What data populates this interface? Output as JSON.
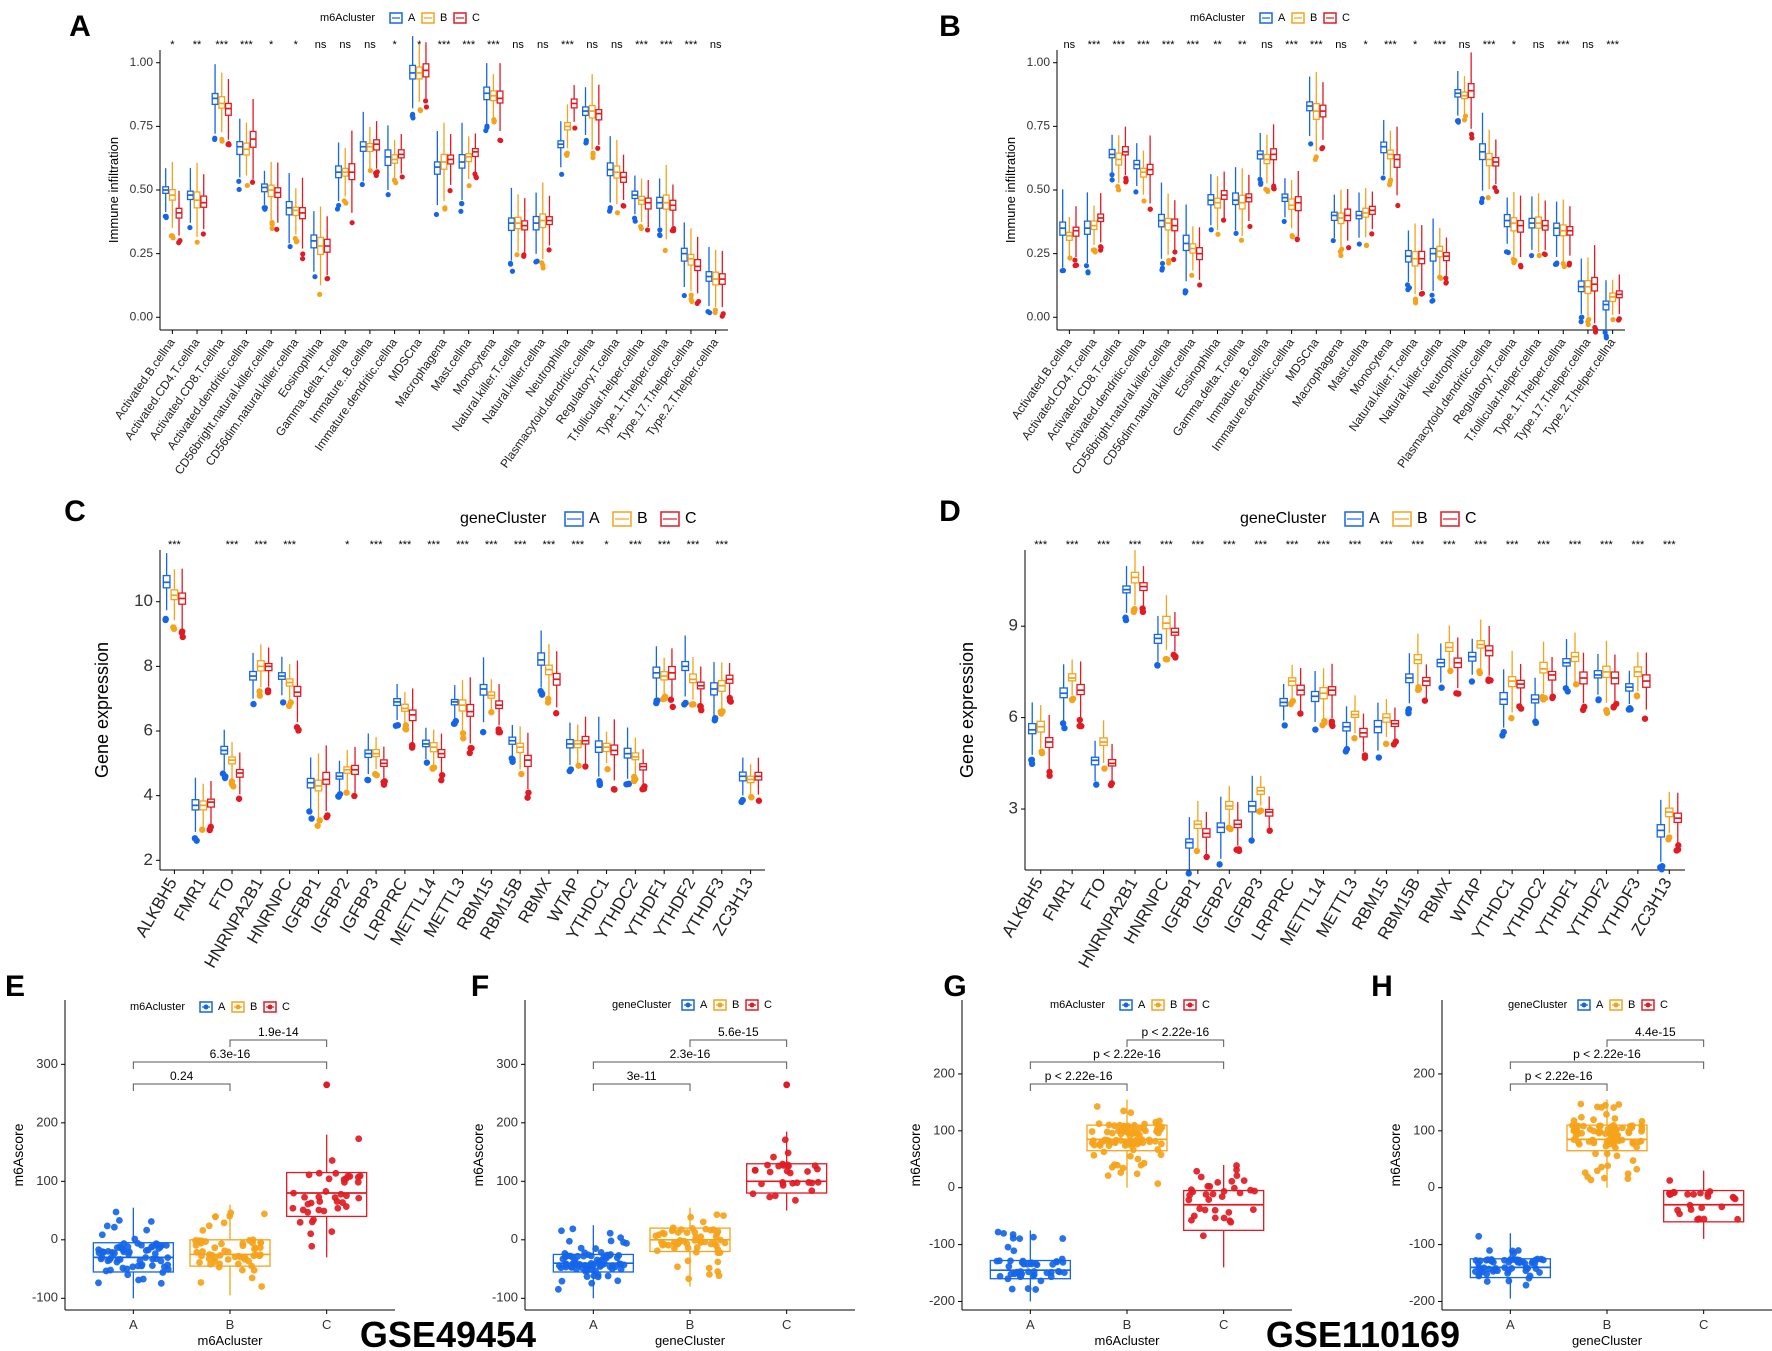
{
  "figure": {
    "dataset_left": "GSE49454",
    "dataset_right": "GSE110169"
  },
  "cluster_colors": {
    "A": "#1565e8",
    "B": "#f5a31a",
    "C": "#e01b24"
  },
  "chart_data": [
    {
      "panel": "A",
      "type": "box",
      "legend_title": "m6Acluster",
      "legend_keys": [
        "A",
        "B",
        "C"
      ],
      "ylabel": "Immune infiltration",
      "xlabel": "",
      "ylim": [
        -0.05,
        1.05
      ],
      "yticks": [
        "0.00",
        "0.25",
        "0.50",
        "0.75",
        "1.00"
      ],
      "yticks_values": [
        0,
        0.25,
        0.5,
        0.75,
        1.0
      ],
      "categories": [
        "Activated.B.cellna",
        "Activated.CD4.T.cellna",
        "Activated.CD8.T.cellna",
        "Activated.dendritic.cellna",
        "CD56bright.natural.killer.cellna",
        "CD56dim.natural.killer.cellna",
        "Eosinophilna",
        "Gamma.delta.T.cellna",
        "Immature..B.cellna",
        "Immature.dendritic.cellna",
        "MDSCna",
        "Macrophagena",
        "Mast.cellna",
        "Monocytena",
        "Natural.killer.T.cellna",
        "Natural.killer.cellna",
        "Neutrophilna",
        "Plasmacytoid.dendritic.cellna",
        "Regulatory.T.cellna",
        "T.follicular.helper.cellna",
        "Type.1.T.helper.cellna",
        "Type.17.T.helper.cellna",
        "Type.2.T.helper.cellna"
      ],
      "significance": [
        "*",
        "**",
        "***",
        "***",
        "*",
        "*",
        "ns",
        "ns",
        "ns",
        "*",
        "*",
        "***",
        "***",
        "***",
        "ns",
        "ns",
        "***",
        "ns",
        "ns",
        "***",
        "***",
        "***",
        "ns"
      ],
      "medians": {
        "A": [
          0.5,
          0.48,
          0.86,
          0.67,
          0.51,
          0.43,
          0.3,
          0.57,
          0.67,
          0.63,
          0.96,
          0.59,
          0.61,
          0.88,
          0.37,
          0.37,
          0.68,
          0.81,
          0.58,
          0.48,
          0.45,
          0.25,
          0.16
        ],
        "B": [
          0.48,
          0.46,
          0.84,
          0.66,
          0.5,
          0.42,
          0.28,
          0.57,
          0.67,
          0.62,
          0.96,
          0.61,
          0.63,
          0.87,
          0.37,
          0.38,
          0.75,
          0.81,
          0.57,
          0.46,
          0.45,
          0.23,
          0.15
        ],
        "C": [
          0.41,
          0.45,
          0.82,
          0.7,
          0.49,
          0.41,
          0.28,
          0.57,
          0.68,
          0.64,
          0.97,
          0.62,
          0.65,
          0.86,
          0.36,
          0.38,
          0.84,
          0.8,
          0.55,
          0.45,
          0.44,
          0.2,
          0.15
        ]
      }
    },
    {
      "panel": "B",
      "type": "box",
      "legend_title": "m6Acluster",
      "legend_keys": [
        "A",
        "B",
        "C"
      ],
      "ylabel": "Immune infiltration",
      "xlabel": "",
      "ylim": [
        -0.05,
        1.05
      ],
      "yticks": [
        "0.00",
        "0.25",
        "0.50",
        "0.75",
        "1.00"
      ],
      "yticks_values": [
        0,
        0.25,
        0.5,
        0.75,
        1.0
      ],
      "categories": [
        "Activated.B.cellna",
        "Activated.CD4.T.cellna",
        "Activated.CD8.T.cellna",
        "Activated.dendritic.cellna",
        "CD56bright.natural.killer.cellna",
        "CD56dim.natural.killer.cellna",
        "Eosinophilna",
        "Gamma.delta.T.cellna",
        "Immature..B.cellna",
        "Immature.dendritic.cellna",
        "MDSCna",
        "Macrophagena",
        "Mast.cellna",
        "Monocytena",
        "Natural.killer.T.cellna",
        "Natural.killer.cellna",
        "Neutrophilna",
        "Plasmacytoid.dendritic.cellna",
        "Regulatory.T.cellna",
        "T.follicular.helper.cellna",
        "Type.1.T.helper.cellna",
        "Type.17.T.helper.cellna",
        "Type.2.T.helper.cellna"
      ],
      "significance": [
        "ns",
        "***",
        "***",
        "***",
        "***",
        "***",
        "**",
        "**",
        "ns",
        "***",
        "***",
        "ns",
        "*",
        "***",
        "*",
        "***",
        "ns",
        "***",
        "*",
        "ns",
        "***",
        "ns",
        "***"
      ],
      "medians": {
        "A": [
          0.35,
          0.35,
          0.64,
          0.6,
          0.38,
          0.29,
          0.46,
          0.46,
          0.64,
          0.47,
          0.83,
          0.4,
          0.4,
          0.67,
          0.24,
          0.25,
          0.88,
          0.65,
          0.38,
          0.37,
          0.35,
          0.12,
          0.05
        ],
        "B": [
          0.32,
          0.36,
          0.62,
          0.57,
          0.37,
          0.27,
          0.45,
          0.45,
          0.62,
          0.44,
          0.81,
          0.39,
          0.41,
          0.64,
          0.23,
          0.26,
          0.87,
          0.62,
          0.37,
          0.37,
          0.34,
          0.12,
          0.08
        ],
        "C": [
          0.34,
          0.39,
          0.65,
          0.58,
          0.36,
          0.25,
          0.48,
          0.47,
          0.64,
          0.45,
          0.81,
          0.4,
          0.42,
          0.62,
          0.23,
          0.24,
          0.89,
          0.61,
          0.36,
          0.36,
          0.34,
          0.13,
          0.09
        ]
      }
    },
    {
      "panel": "C",
      "type": "box",
      "legend_title": "geneCluster",
      "legend_keys": [
        "A",
        "B",
        "C"
      ],
      "ylabel": "Gene expression",
      "xlabel": "",
      "ylim": [
        1.7,
        11.6
      ],
      "yticks": [
        "2",
        "4",
        "6",
        "8",
        "10"
      ],
      "yticks_values": [
        2,
        4,
        6,
        8,
        10
      ],
      "categories": [
        "ALKBH5",
        "FMR1",
        "FTO",
        "HNRNPA2B1",
        "HNRNPC",
        "IGFBP1",
        "IGFBP2",
        "IGFBP3",
        "LRPPRC",
        "METTL14",
        "METTL3",
        "RBM15",
        "RBM15B",
        "RBMX",
        "WTAP",
        "YTHDC1",
        "YTHDC2",
        "YTHDF1",
        "YTHDF2",
        "YTHDF3",
        "ZC3H13"
      ],
      "significance": [
        "***",
        "",
        "***",
        "***",
        "***",
        "",
        "*",
        "***",
        "***",
        "***",
        "***",
        "***",
        "***",
        "***",
        "***",
        "*",
        "***",
        "***",
        "***",
        "***",
        ""
      ],
      "medians": {
        "A": [
          10.6,
          3.7,
          5.4,
          7.7,
          7.7,
          4.4,
          4.6,
          5.3,
          6.9,
          5.6,
          6.9,
          7.3,
          5.7,
          8.2,
          5.6,
          5.5,
          5.3,
          7.8,
          8.0,
          7.3,
          4.6
        ],
        "B": [
          10.2,
          3.7,
          5.1,
          8.0,
          7.5,
          4.3,
          4.8,
          5.3,
          6.7,
          5.5,
          6.8,
          7.1,
          5.5,
          7.9,
          5.6,
          5.5,
          5.2,
          7.7,
          7.6,
          7.4,
          4.5
        ],
        "C": [
          10.1,
          3.8,
          4.7,
          8.0,
          7.2,
          4.5,
          4.8,
          5.0,
          6.5,
          5.3,
          6.6,
          6.8,
          5.1,
          7.6,
          5.7,
          5.4,
          4.9,
          7.8,
          7.4,
          7.6,
          4.6
        ]
      }
    },
    {
      "panel": "D",
      "type": "box",
      "legend_title": "geneCluster",
      "legend_keys": [
        "A",
        "B",
        "C"
      ],
      "ylabel": "Gene expression",
      "xlabel": "",
      "ylim": [
        1.0,
        11.5
      ],
      "yticks": [
        "3",
        "6",
        "9"
      ],
      "yticks_values": [
        3,
        6,
        9
      ],
      "categories": [
        "ALKBH5",
        "FMR1",
        "FTO",
        "HNRNPA2B1",
        "HNRNPC",
        "IGFBP1",
        "IGFBP2",
        "IGFBP3",
        "LRPPRC",
        "METTL14",
        "METTL3",
        "RBM15",
        "RBM15B",
        "RBMX",
        "WTAP",
        "YTHDC1",
        "YTHDC2",
        "YTHDF1",
        "YTHDF2",
        "YTHDF3",
        "ZC3H13"
      ],
      "significance": [
        "***",
        "***",
        "***",
        "***",
        "***",
        "***",
        "***",
        "***",
        "***",
        "***",
        "***",
        "***",
        "***",
        "***",
        "***",
        "***",
        "***",
        "***",
        "***",
        "***",
        "***"
      ],
      "medians": {
        "A": [
          5.6,
          6.8,
          4.6,
          10.2,
          8.6,
          1.9,
          2.4,
          3.1,
          6.5,
          6.7,
          5.7,
          5.7,
          7.3,
          7.8,
          8.0,
          6.6,
          6.6,
          7.8,
          7.4,
          7.0,
          2.3
        ],
        "B": [
          5.7,
          7.3,
          5.2,
          10.6,
          9.1,
          2.5,
          3.1,
          3.6,
          7.2,
          6.8,
          6.1,
          6.0,
          7.9,
          8.3,
          8.4,
          7.2,
          7.6,
          8.0,
          7.5,
          7.5,
          2.9
        ],
        "C": [
          5.2,
          6.9,
          4.5,
          10.3,
          8.8,
          2.2,
          2.5,
          2.9,
          6.9,
          6.9,
          5.5,
          5.8,
          7.2,
          7.8,
          8.2,
          7.1,
          7.4,
          7.3,
          7.3,
          7.2,
          2.7
        ]
      }
    },
    {
      "panel": "E",
      "type": "box",
      "legend_title": "m6Acluster",
      "legend_keys": [
        "A",
        "B",
        "C"
      ],
      "xlabel": "m6Acluster",
      "ylabel": "m6Ascore",
      "ylim": [
        -120,
        410
      ],
      "categories": [
        "A",
        "B",
        "C"
      ],
      "yticks": [
        "-100",
        "0",
        "100",
        "200",
        "300"
      ],
      "yticks_values": [
        -100,
        0,
        100,
        200,
        300
      ],
      "boxes": [
        {
          "q1": -55,
          "med": -30,
          "q3": -5,
          "lo": -100,
          "hi": 55,
          "n": 70
        },
        {
          "q1": -45,
          "med": -25,
          "q3": 0,
          "lo": -95,
          "hi": 60,
          "n": 60
        },
        {
          "q1": 40,
          "med": 80,
          "q3": 115,
          "lo": -30,
          "hi": 180,
          "n": 40
        }
      ],
      "outliers": [
        [],
        [],
        [
          265
        ]
      ],
      "comparisons": [
        {
          "pair": [
            "B",
            "C"
          ],
          "label": "1.9e-14"
        },
        {
          "pair": [
            "A",
            "C"
          ],
          "label": "6.3e-16"
        },
        {
          "pair": [
            "A",
            "B"
          ],
          "label": "0.24"
        }
      ]
    },
    {
      "panel": "F",
      "type": "box",
      "legend_title": "geneCluster",
      "legend_keys": [
        "A",
        "B",
        "C"
      ],
      "xlabel": "geneCluster",
      "ylabel": "m6Ascore",
      "ylim": [
        -120,
        410
      ],
      "categories": [
        "A",
        "B",
        "C"
      ],
      "yticks": [
        "-100",
        "0",
        "100",
        "200",
        "300"
      ],
      "yticks_values": [
        -100,
        0,
        100,
        200,
        300
      ],
      "boxes": [
        {
          "q1": -55,
          "med": -40,
          "q3": -25,
          "lo": -100,
          "hi": 25,
          "n": 80
        },
        {
          "q1": -20,
          "med": 0,
          "q3": 20,
          "lo": -80,
          "hi": 55,
          "n": 60
        },
        {
          "q1": 80,
          "med": 100,
          "q3": 130,
          "lo": 50,
          "hi": 185,
          "n": 30
        }
      ],
      "outliers": [
        [],
        [],
        [
          265
        ]
      ],
      "comparisons": [
        {
          "pair": [
            "B",
            "C"
          ],
          "label": "5.6e-15"
        },
        {
          "pair": [
            "A",
            "C"
          ],
          "label": "2.3e-16"
        },
        {
          "pair": [
            "A",
            "B"
          ],
          "label": "3e-11"
        }
      ]
    },
    {
      "panel": "G",
      "type": "box",
      "legend_title": "m6Acluster",
      "legend_keys": [
        "A",
        "B",
        "C"
      ],
      "xlabel": "m6Acluster",
      "ylabel": "m6Ascore",
      "ylim": [
        -215,
        330
      ],
      "categories": [
        "A",
        "B",
        "C"
      ],
      "yticks": [
        "-200",
        "-100",
        "0",
        "100",
        "200"
      ],
      "yticks_values": [
        -200,
        -100,
        0,
        100,
        200
      ],
      "boxes": [
        {
          "q1": -160,
          "med": -145,
          "q3": -128,
          "lo": -200,
          "hi": -75,
          "n": 50
        },
        {
          "q1": 65,
          "med": 85,
          "q3": 110,
          "lo": 0,
          "hi": 155,
          "n": 90
        },
        {
          "q1": -75,
          "med": -30,
          "q3": -5,
          "lo": -140,
          "hi": 40,
          "n": 35
        }
      ],
      "outliers": [
        [],
        [],
        []
      ],
      "comparisons": [
        {
          "pair": [
            "B",
            "C"
          ],
          "label": "p < 2.22e-16"
        },
        {
          "pair": [
            "A",
            "C"
          ],
          "label": "p < 2.22e-16"
        },
        {
          "pair": [
            "A",
            "B"
          ],
          "label": "p < 2.22e-16"
        }
      ]
    },
    {
      "panel": "H",
      "type": "box",
      "legend_title": "geneCluster",
      "legend_keys": [
        "A",
        "B",
        "C"
      ],
      "xlabel": "geneCluster",
      "ylabel": "m6Ascore",
      "ylim": [
        -215,
        330
      ],
      "categories": [
        "A",
        "B",
        "C"
      ],
      "yticks": [
        "-200",
        "-100",
        "0",
        "100",
        "200"
      ],
      "yticks_values": [
        -200,
        -100,
        0,
        100,
        200
      ],
      "boxes": [
        {
          "q1": -158,
          "med": -140,
          "q3": -125,
          "lo": -195,
          "hi": -80,
          "n": 60
        },
        {
          "q1": 65,
          "med": 85,
          "q3": 110,
          "lo": 0,
          "hi": 155,
          "n": 90
        },
        {
          "q1": -60,
          "med": -30,
          "q3": -5,
          "lo": -90,
          "hi": 30,
          "n": 25
        }
      ],
      "outliers": [
        [],
        [],
        []
      ],
      "comparisons": [
        {
          "pair": [
            "B",
            "C"
          ],
          "label": "4.4e-15"
        },
        {
          "pair": [
            "A",
            "C"
          ],
          "label": "p < 2.22e-16"
        },
        {
          "pair": [
            "A",
            "B"
          ],
          "label": "p < 2.22e-16"
        }
      ]
    }
  ]
}
